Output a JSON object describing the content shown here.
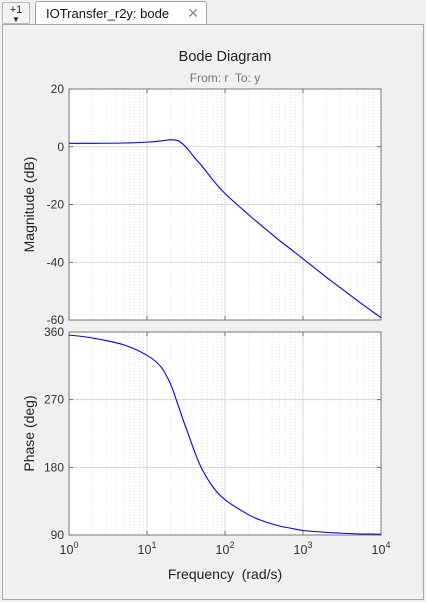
{
  "tabbar": {
    "overflow_label": "+1",
    "tab_label": "IOTransfer_r2y: bode"
  },
  "chart_data": {
    "type": "line",
    "title": "Bode Diagram",
    "subtitle": "From: r  To: y",
    "xlabel": "Frequency  (rad/s)",
    "x_scale": "log",
    "xlim": [
      1,
      10000
    ],
    "x_ticks": [
      "10^0",
      "10^1",
      "10^2",
      "10^3",
      "10^4"
    ],
    "grid": true,
    "line_color": "#0000ff",
    "frequency": [
      1,
      2,
      5,
      10,
      15,
      20,
      25,
      30,
      35,
      40,
      50,
      70,
      100,
      200,
      300,
      500,
      700,
      1000,
      2000,
      3000,
      5000,
      7000,
      10000
    ],
    "subplots": [
      {
        "name": "magnitude",
        "ylabel": "Magnitude (dB)",
        "ylim": [
          -60,
          20
        ],
        "y_ticks": [
          20,
          0,
          -20,
          -40,
          -60
        ],
        "values": [
          1.2,
          1.2,
          1.3,
          1.6,
          2.0,
          2.4,
          2.1,
          0.5,
          -1.5,
          -3.5,
          -6.5,
          -11.5,
          -16.2,
          -23.5,
          -27.5,
          -32.5,
          -35.5,
          -38.8,
          -45.2,
          -48.8,
          -53.3,
          -56.2,
          -59.2
        ]
      },
      {
        "name": "phase",
        "ylabel": "Phase (deg)",
        "ylim": [
          90,
          360
        ],
        "y_ticks": [
          360,
          270,
          180,
          90
        ],
        "values": [
          356,
          352,
          343,
          329,
          314,
          291,
          263,
          239,
          220,
          203,
          179,
          154,
          137,
          117,
          109,
          102,
          99,
          96,
          93.5,
          92.5,
          91.5,
          91.2,
          91
        ]
      }
    ]
  }
}
